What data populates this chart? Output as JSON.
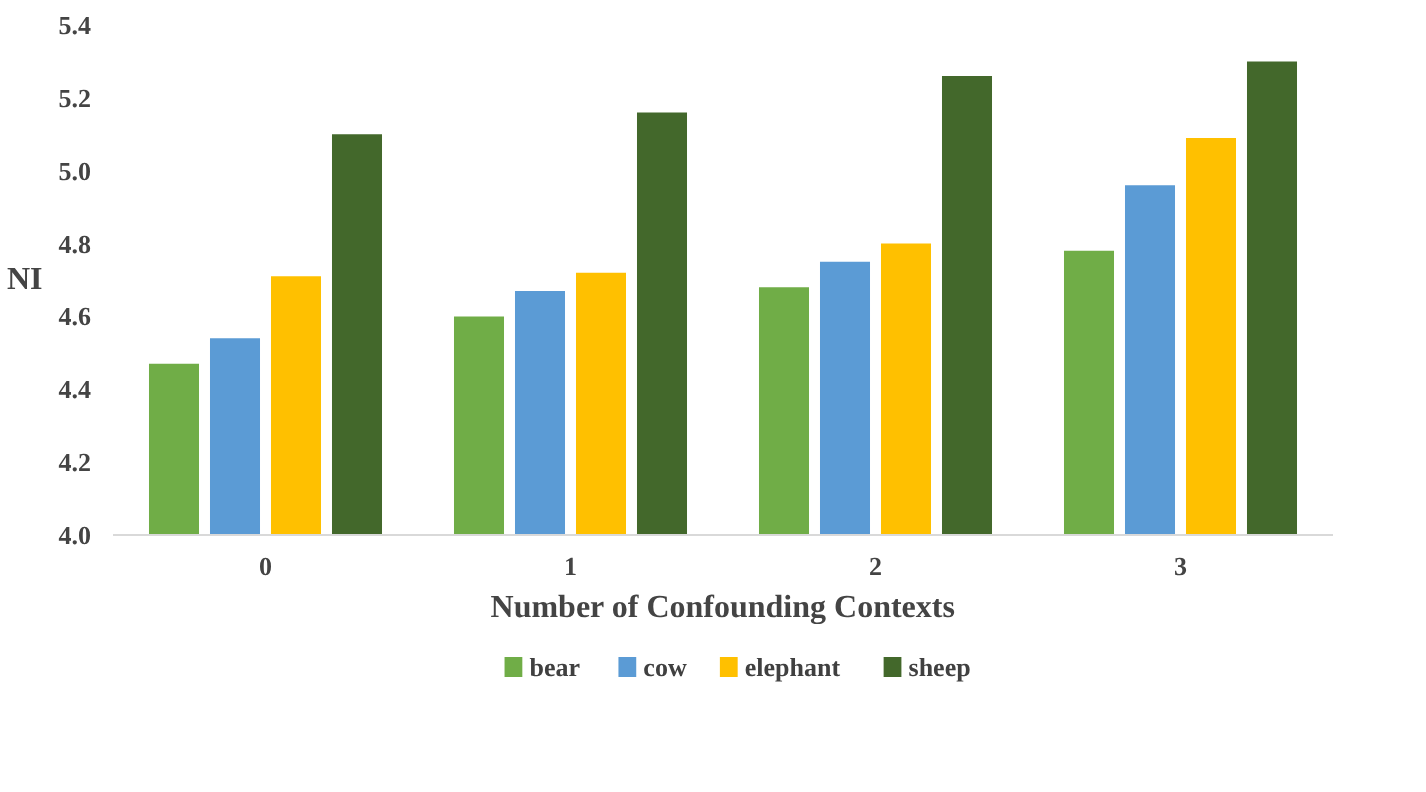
{
  "chart_data": {
    "type": "bar",
    "xlabel": "Number of Confounding Contexts",
    "ylabel": "NI",
    "categories": [
      "0",
      "1",
      "2",
      "3"
    ],
    "series": [
      {
        "name": "bear",
        "color": "#70ad47",
        "values": [
          4.47,
          4.6,
          4.68,
          4.78
        ]
      },
      {
        "name": "cow",
        "color": "#5b9bd5",
        "values": [
          4.54,
          4.67,
          4.75,
          4.96
        ]
      },
      {
        "name": "elephant",
        "color": "#ffc000",
        "values": [
          4.71,
          4.72,
          4.8,
          5.09
        ]
      },
      {
        "name": "sheep",
        "color": "#43682b",
        "values": [
          5.1,
          5.16,
          5.26,
          5.3
        ]
      }
    ],
    "ylim": [
      4.0,
      5.4
    ],
    "yticks": [
      {
        "value": 4.0,
        "label": "4.0"
      },
      {
        "value": 4.2,
        "label": "4.2"
      },
      {
        "value": 4.4,
        "label": "4.4"
      },
      {
        "value": 4.6,
        "label": "4.6"
      },
      {
        "value": 4.8,
        "label": "4.8"
      },
      {
        "value": 5.0,
        "label": "5.0"
      },
      {
        "value": 5.2,
        "label": "5.2"
      },
      {
        "value": 5.4,
        "label": "5.4"
      }
    ],
    "grid": false,
    "legend": "bottom"
  }
}
